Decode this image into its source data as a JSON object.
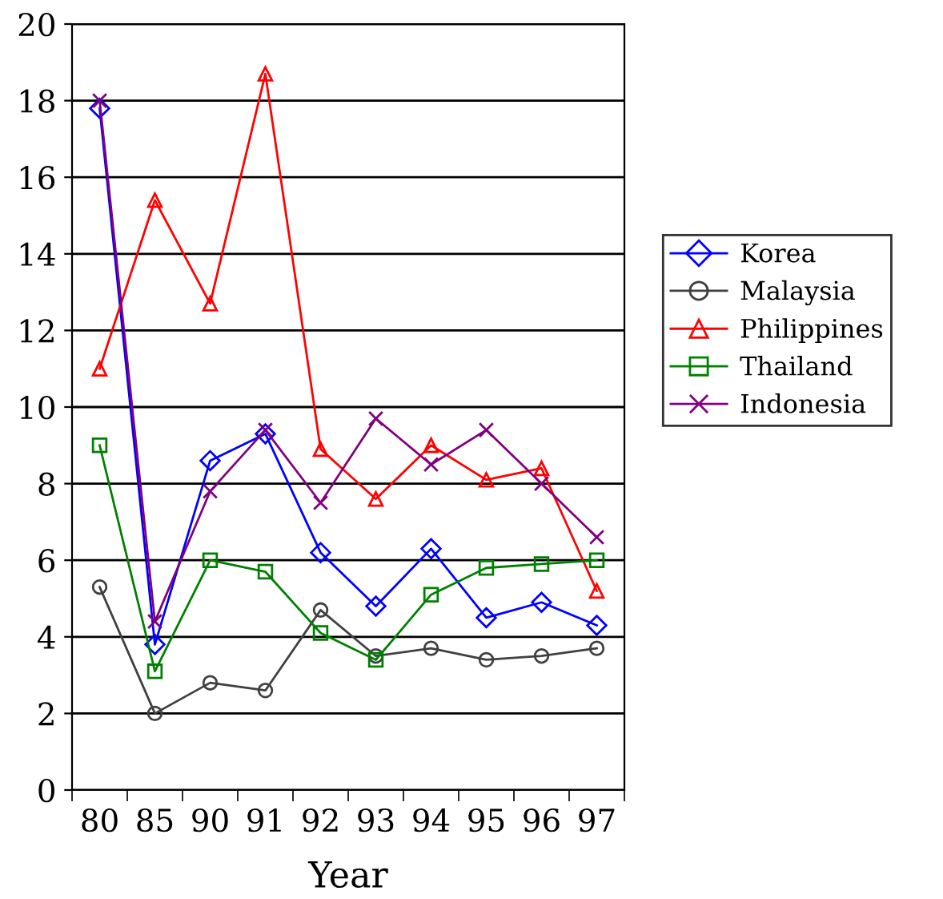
{
  "chart_data": {
    "type": "line",
    "xlabel": "Year",
    "categories": [
      "80",
      "85",
      "90",
      "91",
      "92",
      "93",
      "94",
      "95",
      "96",
      "97"
    ],
    "series": [
      {
        "name": "Korea",
        "color": "#0000ff",
        "marker": "diamond",
        "values": [
          17.8,
          3.8,
          8.6,
          9.3,
          6.2,
          4.8,
          6.3,
          4.5,
          4.9,
          4.3
        ]
      },
      {
        "name": "Malaysia",
        "color": "#404040",
        "marker": "circle",
        "values": [
          5.3,
          2.0,
          2.8,
          2.6,
          4.7,
          3.5,
          3.7,
          3.4,
          3.5,
          3.7
        ]
      },
      {
        "name": "Philippines",
        "color": "#ff0000",
        "marker": "triangle",
        "values": [
          11.0,
          15.4,
          12.7,
          18.7,
          8.9,
          7.6,
          9.0,
          8.1,
          8.4,
          5.2
        ]
      },
      {
        "name": "Thailand",
        "color": "#008000",
        "marker": "square",
        "values": [
          9.0,
          3.1,
          6.0,
          5.7,
          4.1,
          3.4,
          5.1,
          5.8,
          5.9,
          6.0
        ]
      },
      {
        "name": "Indonesia",
        "color": "#800080",
        "marker": "cross",
        "values": [
          18.0,
          4.4,
          7.8,
          9.4,
          7.5,
          9.7,
          8.5,
          9.4,
          8.0,
          6.6
        ]
      }
    ],
    "ylim": [
      0,
      20
    ],
    "yticks": [
      0,
      2,
      4,
      6,
      8,
      10,
      12,
      14,
      16,
      18,
      20
    ],
    "grid": "y",
    "legend": "right",
    "line_style": "solid"
  }
}
